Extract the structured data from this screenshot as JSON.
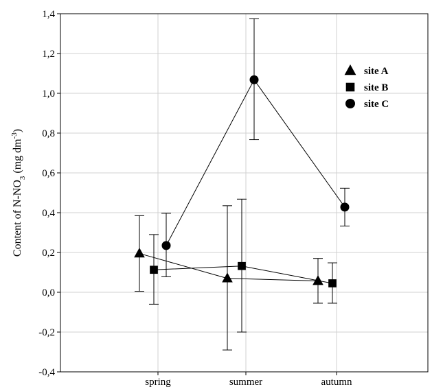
{
  "chart_data": {
    "type": "line",
    "title": "",
    "xlabel": "",
    "ylabel": {
      "prefix": "Content of N-NO",
      "subscript": "3",
      "unit_open": " (mg dm",
      "superscript": "-3",
      "unit_close": ")"
    },
    "categories": [
      "spring",
      "summer",
      "autumn"
    ],
    "ylim": [
      -0.4,
      1.4
    ],
    "yticks": [
      "-0,4",
      "-0,2",
      "0,0",
      "0,2",
      "0,4",
      "0,6",
      "0,8",
      "1,0",
      "1,2",
      "1,4"
    ],
    "grid": true,
    "legend_position": "top-right",
    "series": [
      {
        "name": "site A",
        "marker": "triangle",
        "values": [
          0.195,
          0.07,
          0.057
        ],
        "error_low": [
          0.005,
          -0.29,
          -0.055
        ],
        "error_high": [
          0.385,
          0.435,
          0.17
        ]
      },
      {
        "name": "site B",
        "marker": "square",
        "values": [
          0.113,
          0.132,
          0.045
        ],
        "error_low": [
          -0.06,
          -0.2,
          -0.055
        ],
        "error_high": [
          0.29,
          0.468,
          0.148
        ]
      },
      {
        "name": "site C",
        "marker": "circle",
        "values": [
          0.235,
          1.068,
          0.428
        ],
        "error_low": [
          0.078,
          0.767,
          0.333
        ],
        "error_high": [
          0.397,
          1.375,
          0.523
        ]
      }
    ]
  }
}
